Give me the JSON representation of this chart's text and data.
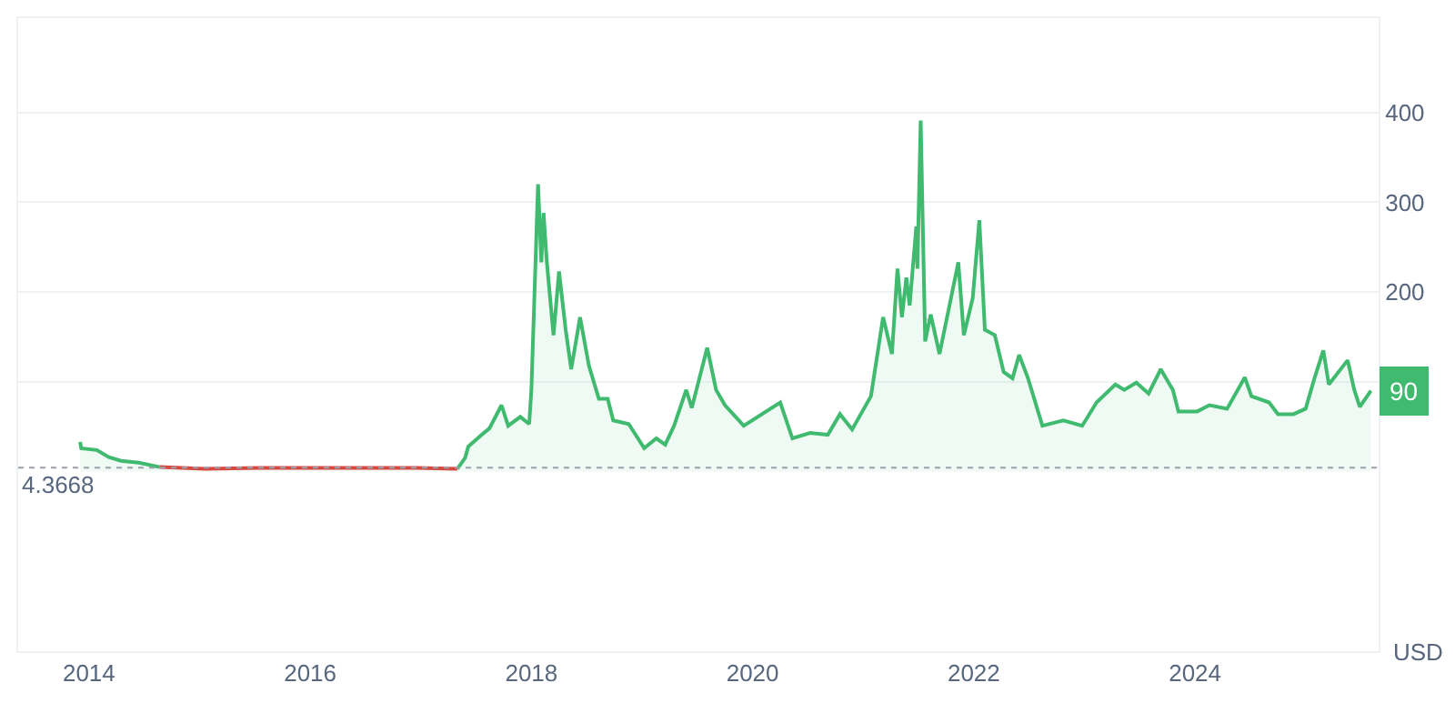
{
  "chart_data": {
    "type": "line",
    "series": [
      {
        "type": "area",
        "color": "#3fba6f",
        "x": [
          2013.92,
          2013.93,
          2014.07,
          2014.18,
          2014.29,
          2014.45,
          2014.64,
          null,
          2017.33,
          2017.4,
          2017.43,
          2017.57,
          2017.62,
          2017.73,
          2017.79,
          2017.9,
          2017.98,
          2018.0,
          2018.06,
          2018.09,
          2018.11,
          2018.14,
          2018.2,
          2018.25,
          2018.31,
          2018.36,
          2018.44,
          2018.52,
          2018.61,
          2018.69,
          2018.74,
          2018.88,
          2019.02,
          2019.13,
          2019.21,
          2019.29,
          2019.4,
          2019.45,
          2019.59,
          2019.67,
          2019.75,
          2019.92,
          2020.25,
          2020.36,
          2020.52,
          2020.68,
          2020.79,
          2020.9,
          2021.07,
          2021.18,
          2021.26,
          2021.31,
          2021.35,
          2021.39,
          2021.42,
          2021.48,
          2021.49,
          2021.52,
          2021.56,
          2021.61,
          2021.69,
          2021.78,
          2021.86,
          2021.91,
          2021.99,
          2022.05,
          2022.1,
          2022.19,
          2022.27,
          2022.35,
          2022.41,
          2022.49,
          2022.62,
          2022.81,
          2022.98,
          2023.11,
          2023.28,
          2023.36,
          2023.47,
          2023.58,
          2023.69,
          2023.8,
          2023.85,
          2024.02,
          2024.13,
          2024.29,
          2024.45,
          2024.51,
          2024.67,
          2024.75,
          2024.89,
          2025.0,
          2025.08,
          2025.16,
          2025.21,
          2025.38,
          2025.44,
          2025.49,
          2025.59
        ],
        "values": [
          33,
          26,
          24,
          16,
          12,
          10,
          5,
          null,
          3,
          15,
          28,
          43,
          48,
          74,
          51,
          61,
          53,
          91,
          320,
          233,
          288,
          233,
          152,
          223,
          158,
          114,
          172,
          118,
          81,
          81,
          57,
          53,
          26,
          37,
          30,
          51,
          91,
          71,
          138,
          91,
          74,
          51,
          77,
          37,
          43,
          41,
          64,
          47,
          84,
          172,
          131,
          226,
          172,
          216,
          185,
          273,
          226,
          391,
          145,
          175,
          131,
          185,
          233,
          152,
          193,
          280,
          158,
          152,
          111,
          104,
          130,
          104,
          51,
          57,
          51,
          77,
          97,
          91,
          99,
          87,
          114,
          91,
          67,
          67,
          74,
          70,
          105,
          84,
          77,
          64,
          64,
          70,
          104,
          135,
          97,
          124,
          91,
          72,
          90
        ]
      },
      {
        "type": "line",
        "color": "#d9473f",
        "x": [
          2014.64,
          2015.05,
          2015.54,
          2015.98,
          2016.48,
          2016.97,
          2017.33
        ],
        "values": [
          5,
          3,
          4,
          4,
          4,
          4,
          3
        ]
      }
    ],
    "xlim": [
      2013.36,
      2025.66
    ],
    "xticks": [
      2014,
      2016,
      2018,
      2020,
      2022,
      2024
    ],
    "ylim": [
      -200,
      505
    ],
    "yticks": [
      {
        "value": 100,
        "label": null
      },
      200,
      300,
      400
    ],
    "grid": "y",
    "legend": false,
    "marker": "none",
    "line_style": "solid",
    "ref_lines": [
      {
        "axis": "y",
        "value": 4.3668,
        "label": "4.3668",
        "color": "#9aa0ad",
        "line_style": "dotted"
      }
    ],
    "annotations": [
      {
        "text": "90",
        "x": 2025.59,
        "y": 90
      },
      "USD"
    ]
  }
}
